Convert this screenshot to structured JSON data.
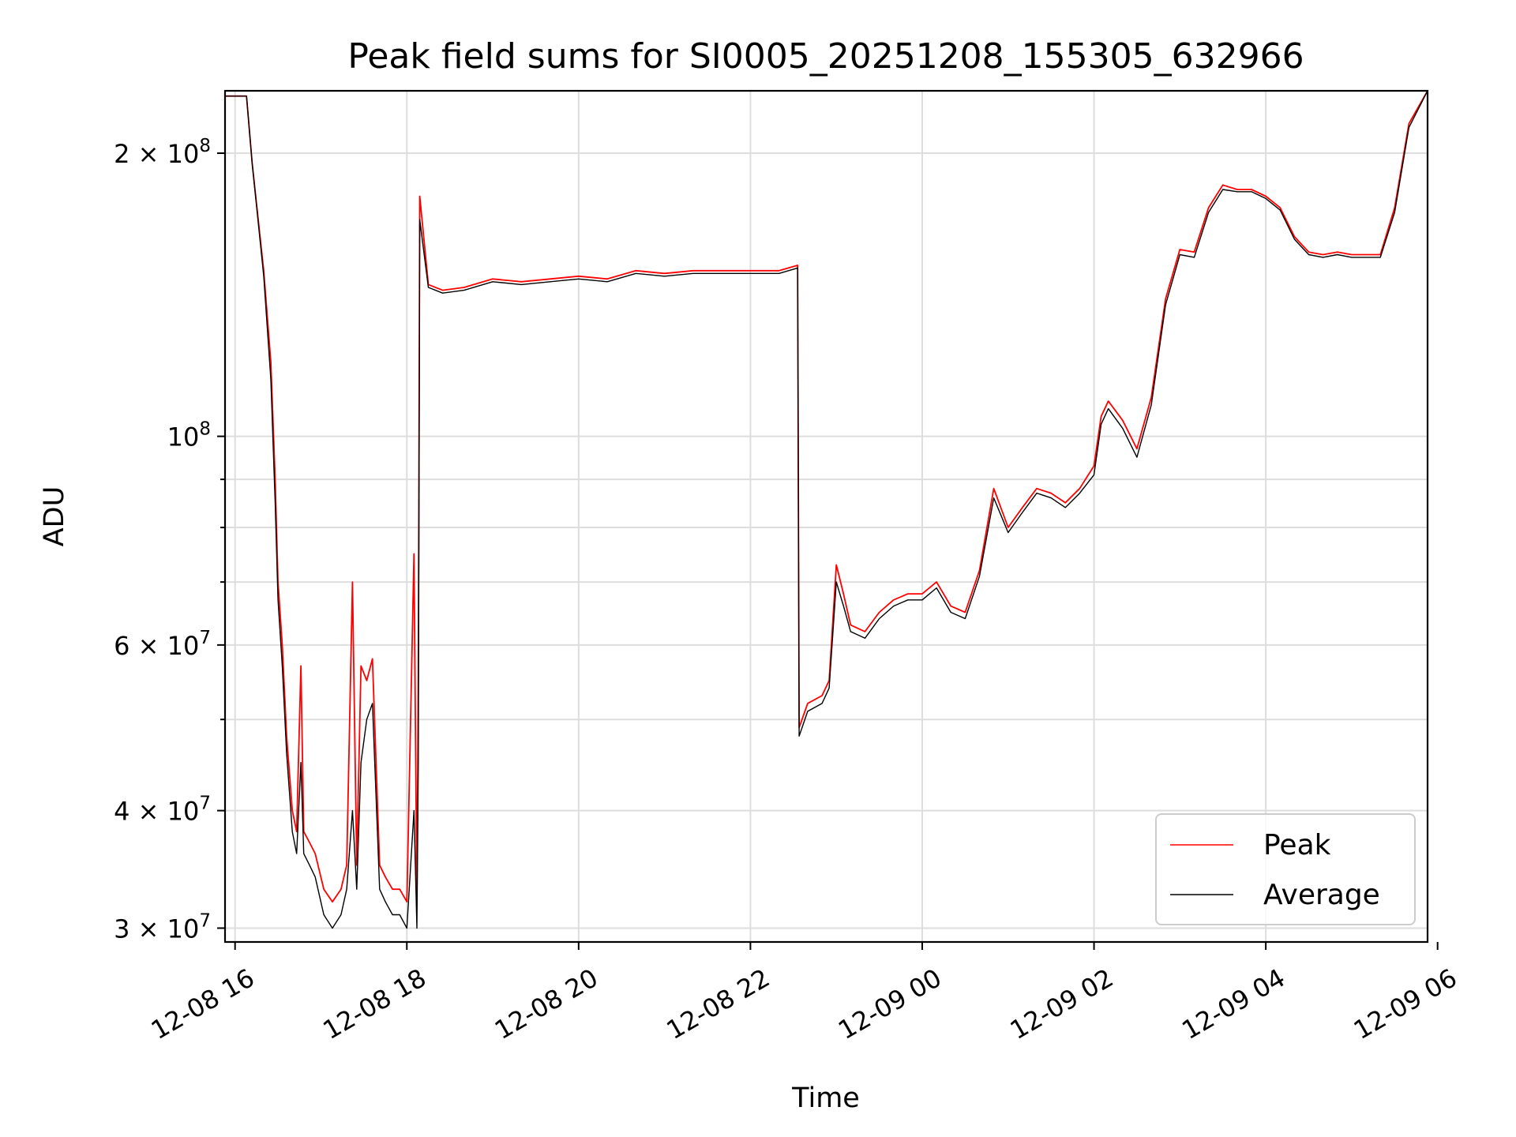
{
  "chart_data": {
    "type": "line",
    "title": "Peak field sums for SI0005_20251208_155305_632966",
    "xlabel": "Time",
    "ylabel": "ADU",
    "y_scale": "log",
    "grid": true,
    "legend_position": "lower-right",
    "xlim": [
      "2025-12-08 15:53",
      "2025-12-09 05:53"
    ],
    "ylim": [
      29000000,
      233000000
    ],
    "x_ticks": [
      {
        "value": "2025-12-08 16:00",
        "label": "12-08 16"
      },
      {
        "value": "2025-12-08 18:00",
        "label": "12-08 18"
      },
      {
        "value": "2025-12-08 20:00",
        "label": "12-08 20"
      },
      {
        "value": "2025-12-08 22:00",
        "label": "12-08 22"
      },
      {
        "value": "2025-12-09 00:00",
        "label": "12-09 00"
      },
      {
        "value": "2025-12-09 02:00",
        "label": "12-09 02"
      },
      {
        "value": "2025-12-09 04:00",
        "label": "12-09 04"
      },
      {
        "value": "2025-12-09 06:00",
        "label": "12-09 06"
      }
    ],
    "y_major_ticks": [
      {
        "value": 30000000,
        "mantissa": "3 × 10",
        "exp": "7"
      },
      {
        "value": 40000000,
        "mantissa": "4 × 10",
        "exp": "7"
      },
      {
        "value": 60000000,
        "mantissa": "6 × 10",
        "exp": "7"
      },
      {
        "value": 100000000,
        "mantissa": "10",
        "exp": "8"
      },
      {
        "value": 200000000,
        "mantissa": "2 × 10",
        "exp": "8"
      }
    ],
    "y_minor_ticks": [
      50000000,
      70000000,
      80000000,
      90000000
    ],
    "series": [
      {
        "name": "Peak",
        "color": "#ff0000",
        "x": [
          "2025-12-08 15:53",
          "2025-12-08 16:08",
          "2025-12-08 16:12",
          "2025-12-08 16:20",
          "2025-12-08 16:25",
          "2025-12-08 16:28",
          "2025-12-08 16:30",
          "2025-12-08 16:33",
          "2025-12-08 16:36",
          "2025-12-08 16:40",
          "2025-12-08 16:43",
          "2025-12-08 16:46",
          "2025-12-08 16:48",
          "2025-12-08 16:52",
          "2025-12-08 16:56",
          "2025-12-08 17:02",
          "2025-12-08 17:08",
          "2025-12-08 17:14",
          "2025-12-08 17:18",
          "2025-12-08 17:22",
          "2025-12-08 17:25",
          "2025-12-08 17:28",
          "2025-12-08 17:32",
          "2025-12-08 17:36",
          "2025-12-08 17:41",
          "2025-12-08 17:45",
          "2025-12-08 17:50",
          "2025-12-08 17:55",
          "2025-12-08 18:00",
          "2025-12-08 18:05",
          "2025-12-08 18:07",
          "2025-12-08 18:08",
          "2025-12-08 18:09",
          "2025-12-08 18:15",
          "2025-12-08 18:25",
          "2025-12-08 18:40",
          "2025-12-08 19:00",
          "2025-12-08 19:20",
          "2025-12-08 19:40",
          "2025-12-08 20:00",
          "2025-12-08 20:20",
          "2025-12-08 20:40",
          "2025-12-08 21:00",
          "2025-12-08 21:20",
          "2025-12-08 21:40",
          "2025-12-08 22:00",
          "2025-12-08 22:20",
          "2025-12-08 22:33",
          "2025-12-08 22:34",
          "2025-12-08 22:40",
          "2025-12-08 22:50",
          "2025-12-08 22:55",
          "2025-12-08 23:00",
          "2025-12-08 23:05",
          "2025-12-08 23:10",
          "2025-12-08 23:20",
          "2025-12-08 23:30",
          "2025-12-08 23:40",
          "2025-12-08 23:50",
          "2025-12-09 00:00",
          "2025-12-09 00:10",
          "2025-12-09 00:20",
          "2025-12-09 00:30",
          "2025-12-09 00:40",
          "2025-12-09 00:50",
          "2025-12-09 01:00",
          "2025-12-09 01:10",
          "2025-12-09 01:20",
          "2025-12-09 01:30",
          "2025-12-09 01:40",
          "2025-12-09 01:50",
          "2025-12-09 02:00",
          "2025-12-09 02:05",
          "2025-12-09 02:10",
          "2025-12-09 02:20",
          "2025-12-09 02:30",
          "2025-12-09 02:40",
          "2025-12-09 02:50",
          "2025-12-09 03:00",
          "2025-12-09 03:10",
          "2025-12-09 03:20",
          "2025-12-09 03:30",
          "2025-12-09 03:40",
          "2025-12-09 03:50",
          "2025-12-09 04:00",
          "2025-12-09 04:10",
          "2025-12-09 04:20",
          "2025-12-09 04:30",
          "2025-12-09 04:40",
          "2025-12-09 04:50",
          "2025-12-09 05:00",
          "2025-12-09 05:10",
          "2025-12-09 05:20",
          "2025-12-09 05:30",
          "2025-12-09 05:40",
          "2025-12-09 05:53"
        ],
        "values": [
          230000000,
          230000000,
          195000000,
          150000000,
          120000000,
          90000000,
          70000000,
          60000000,
          48000000,
          40000000,
          38000000,
          57000000,
          38000000,
          37000000,
          36000000,
          33000000,
          32000000,
          33000000,
          35000000,
          70000000,
          35000000,
          57000000,
          55000000,
          58000000,
          35000000,
          34000000,
          33000000,
          33000000,
          32000000,
          75000000,
          32000000,
          56000000,
          180000000,
          145000000,
          143000000,
          144000000,
          147000000,
          146000000,
          147000000,
          148000000,
          147000000,
          150000000,
          149000000,
          150000000,
          150000000,
          150000000,
          150000000,
          152000000,
          49000000,
          52000000,
          53000000,
          55000000,
          73000000,
          68000000,
          63000000,
          62000000,
          65000000,
          67000000,
          68000000,
          68000000,
          70000000,
          66000000,
          65000000,
          72000000,
          88000000,
          80000000,
          84000000,
          88000000,
          87000000,
          85000000,
          88000000,
          93000000,
          105000000,
          109000000,
          104000000,
          97000000,
          110000000,
          140000000,
          158000000,
          157000000,
          175000000,
          185000000,
          183000000,
          183000000,
          180000000,
          175000000,
          163000000,
          157000000,
          156000000,
          157000000,
          156000000,
          156000000,
          156000000,
          175000000,
          215000000,
          233000000
        ]
      },
      {
        "name": "Average",
        "color": "#000000",
        "x": [
          "2025-12-08 15:53",
          "2025-12-08 16:08",
          "2025-12-08 16:12",
          "2025-12-08 16:20",
          "2025-12-08 16:25",
          "2025-12-08 16:28",
          "2025-12-08 16:30",
          "2025-12-08 16:33",
          "2025-12-08 16:36",
          "2025-12-08 16:40",
          "2025-12-08 16:43",
          "2025-12-08 16:46",
          "2025-12-08 16:48",
          "2025-12-08 16:52",
          "2025-12-08 16:56",
          "2025-12-08 17:02",
          "2025-12-08 17:08",
          "2025-12-08 17:14",
          "2025-12-08 17:18",
          "2025-12-08 17:22",
          "2025-12-08 17:25",
          "2025-12-08 17:28",
          "2025-12-08 17:32",
          "2025-12-08 17:36",
          "2025-12-08 17:41",
          "2025-12-08 17:45",
          "2025-12-08 17:50",
          "2025-12-08 17:55",
          "2025-12-08 18:00",
          "2025-12-08 18:05",
          "2025-12-08 18:07",
          "2025-12-08 18:08",
          "2025-12-08 18:09",
          "2025-12-08 18:15",
          "2025-12-08 18:25",
          "2025-12-08 18:40",
          "2025-12-08 19:00",
          "2025-12-08 19:20",
          "2025-12-08 19:40",
          "2025-12-08 20:00",
          "2025-12-08 20:20",
          "2025-12-08 20:40",
          "2025-12-08 21:00",
          "2025-12-08 21:20",
          "2025-12-08 21:40",
          "2025-12-08 22:00",
          "2025-12-08 22:20",
          "2025-12-08 22:33",
          "2025-12-08 22:34",
          "2025-12-08 22:40",
          "2025-12-08 22:50",
          "2025-12-08 22:55",
          "2025-12-08 23:00",
          "2025-12-08 23:05",
          "2025-12-08 23:10",
          "2025-12-08 23:20",
          "2025-12-08 23:30",
          "2025-12-08 23:40",
          "2025-12-08 23:50",
          "2025-12-09 00:00",
          "2025-12-09 00:10",
          "2025-12-09 00:20",
          "2025-12-09 00:30",
          "2025-12-09 00:40",
          "2025-12-09 00:50",
          "2025-12-09 01:00",
          "2025-12-09 01:10",
          "2025-12-09 01:20",
          "2025-12-09 01:30",
          "2025-12-09 01:40",
          "2025-12-09 01:50",
          "2025-12-09 02:00",
          "2025-12-09 02:05",
          "2025-12-09 02:10",
          "2025-12-09 02:20",
          "2025-12-09 02:30",
          "2025-12-09 02:40",
          "2025-12-09 02:50",
          "2025-12-09 03:00",
          "2025-12-09 03:10",
          "2025-12-09 03:20",
          "2025-12-09 03:30",
          "2025-12-09 03:40",
          "2025-12-09 03:50",
          "2025-12-09 04:00",
          "2025-12-09 04:10",
          "2025-12-09 04:20",
          "2025-12-09 04:30",
          "2025-12-09 04:40",
          "2025-12-09 04:50",
          "2025-12-09 05:00",
          "2025-12-09 05:10",
          "2025-12-09 05:20",
          "2025-12-09 05:30",
          "2025-12-09 05:40",
          "2025-12-09 05:53"
        ],
        "values": [
          230000000,
          230000000,
          195000000,
          148000000,
          115000000,
          85000000,
          67000000,
          57000000,
          46000000,
          38000000,
          36000000,
          45000000,
          36000000,
          35000000,
          34000000,
          31000000,
          30000000,
          31000000,
          33000000,
          40000000,
          33000000,
          45000000,
          50000000,
          52000000,
          33000000,
          32000000,
          31000000,
          31000000,
          30000000,
          40000000,
          30000000,
          45000000,
          170000000,
          144000000,
          142000000,
          143000000,
          146000000,
          145000000,
          146000000,
          147000000,
          146000000,
          149000000,
          148000000,
          149000000,
          149000000,
          149000000,
          149000000,
          151000000,
          48000000,
          51000000,
          52000000,
          54000000,
          70000000,
          66000000,
          62000000,
          61000000,
          64000000,
          66000000,
          67000000,
          67000000,
          69000000,
          65000000,
          64000000,
          71000000,
          86000000,
          79000000,
          83000000,
          87000000,
          86000000,
          84000000,
          87000000,
          91000000,
          103000000,
          107000000,
          102000000,
          95000000,
          108000000,
          138000000,
          156000000,
          155000000,
          173000000,
          183000000,
          182000000,
          182000000,
          179000000,
          174000000,
          162000000,
          156000000,
          155000000,
          156000000,
          155000000,
          155000000,
          155000000,
          173000000,
          213000000,
          233000000
        ]
      }
    ]
  }
}
